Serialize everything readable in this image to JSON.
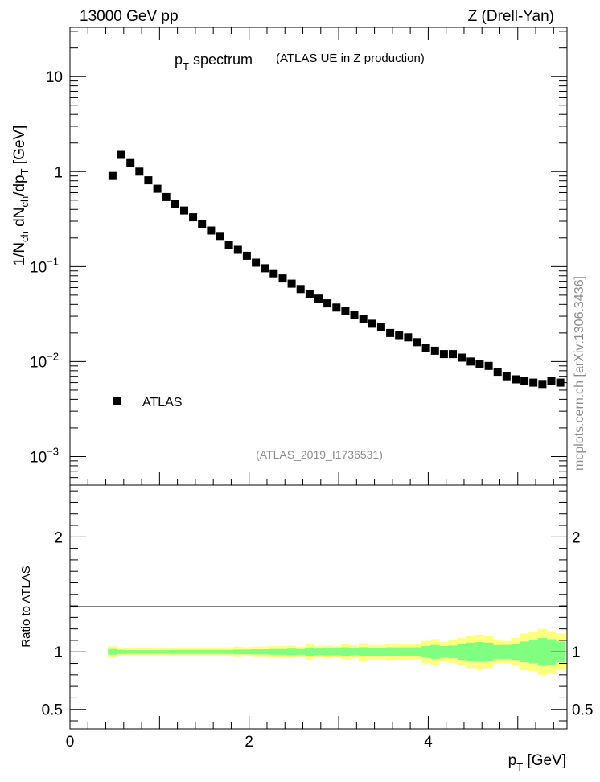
{
  "header": {
    "left": "13000 GeV pp",
    "right": "Z (Drell-Yan)"
  },
  "watermark": "mcplots.cern.ch [arXiv:1306.3436]",
  "analysis_id": "(ATLAS_2019_I1736531)",
  "title": {
    "main_p": "p",
    "main_sub": "T",
    "main_rest": " spectrum",
    "secondary": "(ATLAS UE in Z production)"
  },
  "y_main_label": {
    "a": "1/N",
    "a_sub": "ch",
    "b": " dN",
    "b_sub": "ch",
    "c": "/dp",
    "c_sub": "T",
    "d": " [GeV]"
  },
  "y_ratio_label": "Ratio to ATLAS",
  "x_label": {
    "p": "p",
    "sub": "T",
    "rest": " [GeV]"
  },
  "legend": {
    "label": "ATLAS",
    "position": "lower-left"
  },
  "colors": {
    "data": "#000000",
    "band_outer": "#ffff80",
    "band_inner": "#80ff80",
    "watermark": "#8c8c8c"
  },
  "chart_data": [
    {
      "type": "scatter",
      "panel": "main",
      "y_scale": "log",
      "xlim": [
        0,
        5.55
      ],
      "ylim": [
        0.0005,
        33
      ],
      "y_ticks": [
        {
          "v": 10,
          "label": "10",
          "sup": ""
        },
        {
          "v": 1,
          "label": "1",
          "sup": ""
        },
        {
          "v": 0.1,
          "label": "10",
          "sup": "−1"
        },
        {
          "v": 0.01,
          "label": "10",
          "sup": "−2"
        },
        {
          "v": 0.001,
          "label": "10",
          "sup": "−3"
        }
      ],
      "series": [
        {
          "name": "ATLAS",
          "marker": "square",
          "x": [
            0.475,
            0.575,
            0.675,
            0.775,
            0.875,
            0.975,
            1.075,
            1.175,
            1.275,
            1.375,
            1.475,
            1.575,
            1.675,
            1.775,
            1.875,
            1.975,
            2.075,
            2.175,
            2.275,
            2.375,
            2.475,
            2.575,
            2.675,
            2.775,
            2.875,
            2.975,
            3.075,
            3.175,
            3.275,
            3.375,
            3.475,
            3.575,
            3.675,
            3.775,
            3.875,
            3.975,
            4.075,
            4.175,
            4.275,
            4.375,
            4.475,
            4.575,
            4.675,
            4.775,
            4.875,
            4.975,
            5.075,
            5.175,
            5.275,
            5.375,
            5.475
          ],
          "y": [
            0.9,
            1.5,
            1.23,
            1.0,
            0.81,
            0.66,
            0.54,
            0.46,
            0.39,
            0.33,
            0.28,
            0.24,
            0.21,
            0.17,
            0.15,
            0.13,
            0.11,
            0.096,
            0.085,
            0.075,
            0.066,
            0.058,
            0.051,
            0.046,
            0.041,
            0.037,
            0.034,
            0.031,
            0.028,
            0.025,
            0.023,
            0.02,
            0.019,
            0.018,
            0.016,
            0.014,
            0.013,
            0.012,
            0.012,
            0.011,
            0.01,
            0.0095,
            0.009,
            0.0078,
            0.007,
            0.0065,
            0.0062,
            0.006,
            0.0058,
            0.0063,
            0.006
          ]
        }
      ]
    },
    {
      "type": "area",
      "panel": "ratio",
      "xlim": [
        0,
        5.55
      ],
      "ylim": [
        0.33,
        2.45
      ],
      "x_ticks": [
        0,
        2,
        4
      ],
      "y_ticks": [
        {
          "v": 0.5,
          "label": "0.5"
        },
        {
          "v": 1,
          "label": "1"
        },
        {
          "v": 2,
          "label": "2"
        }
      ],
      "bin_edges": [
        0.425,
        0.525,
        0.625,
        0.725,
        0.825,
        0.925,
        1.025,
        1.125,
        1.225,
        1.325,
        1.425,
        1.525,
        1.625,
        1.725,
        1.825,
        1.925,
        2.025,
        2.125,
        2.225,
        2.325,
        2.425,
        2.525,
        2.625,
        2.725,
        2.825,
        2.925,
        3.025,
        3.125,
        3.225,
        3.325,
        3.425,
        3.525,
        3.625,
        3.725,
        3.825,
        3.925,
        4.025,
        4.125,
        4.225,
        4.325,
        4.425,
        4.525,
        4.625,
        4.725,
        4.825,
        4.925,
        5.025,
        5.125,
        5.225,
        5.325,
        5.425,
        5.525
      ],
      "series": [
        {
          "name": "",
          "band": "outer",
          "half_width": [
            0.05,
            0.035,
            0.03,
            0.03,
            0.03,
            0.03,
            0.03,
            0.035,
            0.035,
            0.035,
            0.035,
            0.035,
            0.035,
            0.035,
            0.045,
            0.04,
            0.045,
            0.045,
            0.05,
            0.05,
            0.055,
            0.045,
            0.065,
            0.05,
            0.055,
            0.05,
            0.065,
            0.055,
            0.075,
            0.06,
            0.06,
            0.07,
            0.07,
            0.065,
            0.065,
            0.095,
            0.11,
            0.085,
            0.1,
            0.12,
            0.14,
            0.15,
            0.14,
            0.1,
            0.095,
            0.12,
            0.16,
            0.17,
            0.2,
            0.18,
            0.16
          ]
        },
        {
          "name": "",
          "band": "inner",
          "half_width": [
            0.025,
            0.018,
            0.015,
            0.015,
            0.015,
            0.015,
            0.015,
            0.017,
            0.017,
            0.017,
            0.017,
            0.017,
            0.017,
            0.017,
            0.02,
            0.02,
            0.022,
            0.022,
            0.025,
            0.025,
            0.028,
            0.025,
            0.035,
            0.028,
            0.03,
            0.03,
            0.04,
            0.03,
            0.04,
            0.035,
            0.035,
            0.04,
            0.04,
            0.04,
            0.04,
            0.05,
            0.06,
            0.05,
            0.055,
            0.07,
            0.08,
            0.085,
            0.08,
            0.06,
            0.06,
            0.07,
            0.09,
            0.1,
            0.12,
            0.11,
            0.09
          ]
        }
      ]
    }
  ]
}
